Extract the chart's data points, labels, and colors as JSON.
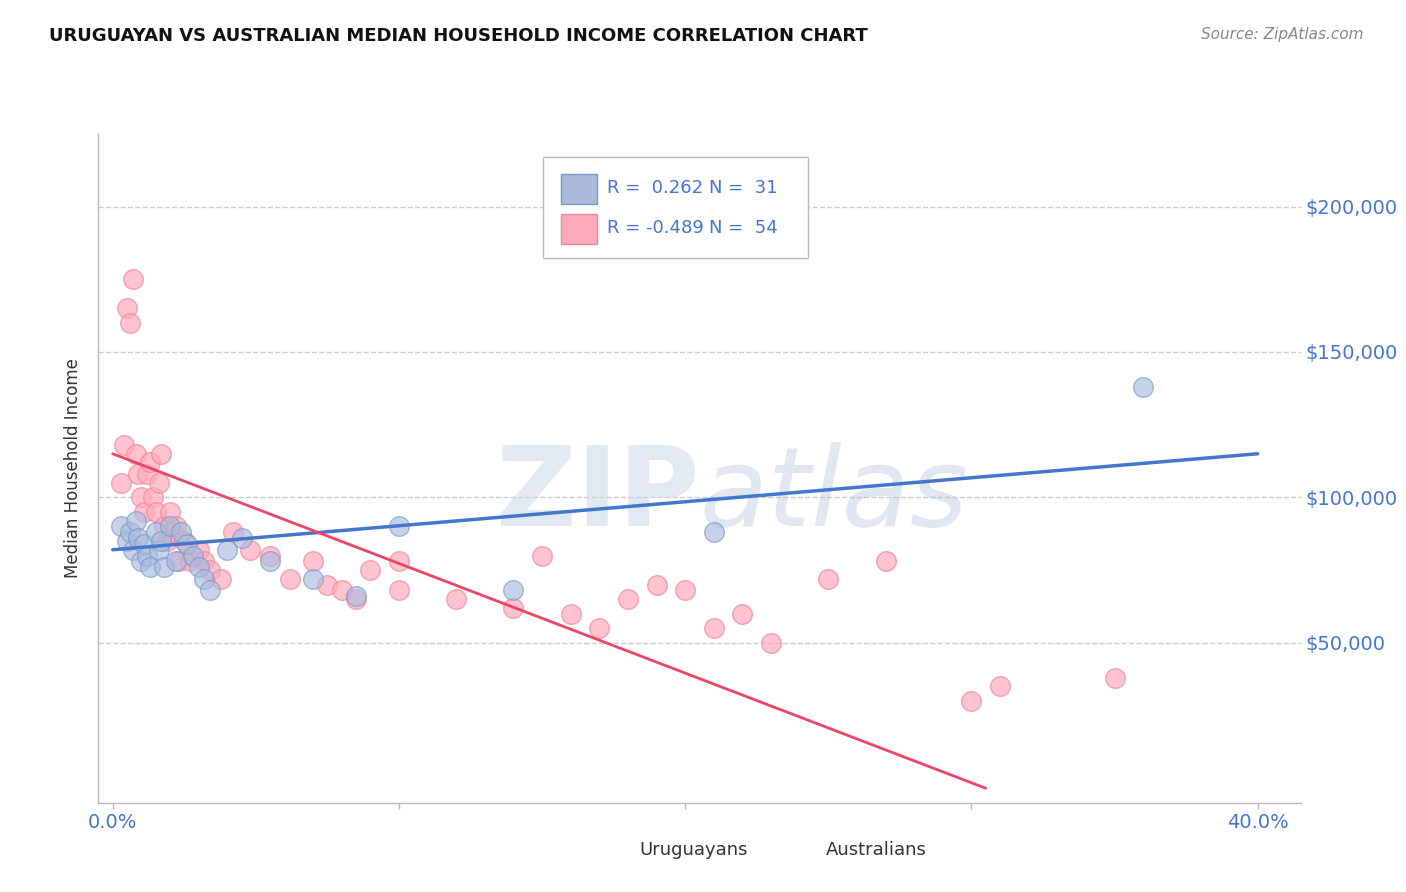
{
  "title": "URUGUAYAN VS AUSTRALIAN MEDIAN HOUSEHOLD INCOME CORRELATION CHART",
  "source": "Source: ZipAtlas.com",
  "ylabel": "Median Household Income",
  "xlim": [
    -0.005,
    0.415
  ],
  "ylim": [
    -5000,
    225000
  ],
  "yticks": [
    0,
    50000,
    100000,
    150000,
    200000
  ],
  "ytick_labels_right": [
    "",
    "$50,000",
    "$100,000",
    "$150,000",
    "$200,000"
  ],
  "xticks": [
    0.0,
    0.1,
    0.2,
    0.3,
    0.4
  ],
  "xtick_labels": [
    "0.0%",
    "",
    "",
    "",
    "40.0%"
  ],
  "background_color": "#ffffff",
  "grid_color": "#cccccc",
  "blue_fill": "#aabbdd",
  "blue_edge": "#7799cc",
  "pink_fill": "#ffaabb",
  "pink_edge": "#ee8899",
  "blue_line_color": "#4477cc",
  "pink_line_color": "#ee4466",
  "title_color": "#111111",
  "axis_label_color": "#333333",
  "tick_label_color": "#4477cc",
  "R_blue": 0.262,
  "N_blue": 31,
  "R_pink": -0.489,
  "N_pink": 54,
  "watermark": "ZIPatlas",
  "legend_label_blue": "Uruguayans",
  "legend_label_pink": "Australians",
  "blue_scatter_x": [
    0.003,
    0.005,
    0.006,
    0.007,
    0.008,
    0.009,
    0.01,
    0.011,
    0.012,
    0.013,
    0.015,
    0.016,
    0.017,
    0.018,
    0.02,
    0.022,
    0.024,
    0.026,
    0.028,
    0.03,
    0.032,
    0.034,
    0.04,
    0.045,
    0.055,
    0.07,
    0.085,
    0.1,
    0.14,
    0.21,
    0.36
  ],
  "blue_scatter_y": [
    90000,
    85000,
    88000,
    82000,
    92000,
    86000,
    78000,
    84000,
    80000,
    76000,
    88000,
    82000,
    85000,
    76000,
    90000,
    78000,
    88000,
    84000,
    80000,
    76000,
    72000,
    68000,
    82000,
    86000,
    78000,
    72000,
    66000,
    90000,
    68000,
    88000,
    138000
  ],
  "pink_scatter_x": [
    0.003,
    0.004,
    0.005,
    0.006,
    0.007,
    0.008,
    0.009,
    0.01,
    0.011,
    0.012,
    0.013,
    0.014,
    0.015,
    0.016,
    0.017,
    0.018,
    0.019,
    0.02,
    0.021,
    0.022,
    0.023,
    0.025,
    0.027,
    0.03,
    0.032,
    0.034,
    0.038,
    0.042,
    0.048,
    0.055,
    0.062,
    0.07,
    0.075,
    0.08,
    0.085,
    0.09,
    0.1,
    0.1,
    0.12,
    0.14,
    0.15,
    0.16,
    0.17,
    0.18,
    0.19,
    0.2,
    0.21,
    0.22,
    0.23,
    0.25,
    0.27,
    0.3,
    0.31,
    0.35
  ],
  "pink_scatter_y": [
    105000,
    118000,
    165000,
    160000,
    175000,
    115000,
    108000,
    100000,
    95000,
    108000,
    112000,
    100000,
    95000,
    105000,
    115000,
    90000,
    85000,
    95000,
    88000,
    90000,
    78000,
    85000,
    78000,
    82000,
    78000,
    75000,
    72000,
    88000,
    82000,
    80000,
    72000,
    78000,
    70000,
    68000,
    65000,
    75000,
    78000,
    68000,
    65000,
    62000,
    80000,
    60000,
    55000,
    65000,
    70000,
    68000,
    55000,
    60000,
    50000,
    72000,
    78000,
    30000,
    35000,
    38000
  ],
  "blue_line_x": [
    0.0,
    0.4
  ],
  "blue_line_y": [
    82000,
    115000
  ],
  "pink_line_x": [
    0.0,
    0.305
  ],
  "pink_line_y": [
    115000,
    0
  ]
}
